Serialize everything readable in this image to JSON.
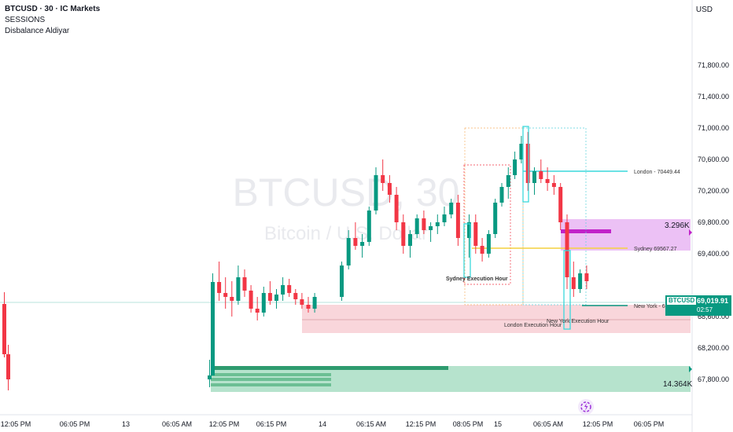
{
  "legend": {
    "title": "BTCUSD · 30 · IC Markets",
    "ind1": "SESSIONS",
    "ind2": "Disbalance Aldiyar"
  },
  "currency": "USD",
  "watermark": {
    "symbol": "BTCUSD, 30",
    "name": "Bitcoin / U.S. Dollar"
  },
  "yaxis": {
    "ticks": [
      "71,800.00",
      "71,400.00",
      "71,000.00",
      "70,600.00",
      "70,200.00",
      "69,800.00",
      "69,400.00",
      "68,600.00",
      "68,200.00",
      "67,800.00"
    ]
  },
  "xaxis": {
    "ticks": [
      "12:05 PM",
      "06:05 PM",
      "13",
      "06:05 AM",
      "12:05 PM",
      "06:15 PM",
      "14",
      "06:15 AM",
      "12:15 PM",
      "08:05 PM",
      "15",
      "06:05 AM",
      "12:05 PM",
      "06:05 PM"
    ]
  },
  "price": {
    "symbol": "BTCUSD",
    "value": "69,019.91",
    "countdown": "02:57"
  },
  "annotations": {
    "london": "London - 70449.44",
    "sydney": "Sydney 69567.27",
    "newyork": "New York - 6",
    "sydney_exec": "Sydney Execution Hour",
    "london_exec": "London Execution Hour",
    "ny_exec": "New York Execution Hour"
  },
  "volume_labels": {
    "top": "3.296K",
    "bottom": "14.364K"
  },
  "colors": {
    "up": "#089981",
    "down": "#f23645",
    "accent": "#e040fb"
  },
  "chart_data": {
    "type": "candlestick",
    "candles": [
      [
        68760,
        68910,
        68080,
        68120
      ],
      [
        68120,
        68240,
        67660,
        67800
      ],
      [
        67800,
        68050,
        67700,
        67850
      ],
      [
        67850,
        69150,
        67850,
        69040
      ],
      [
        69040,
        69300,
        68800,
        68900
      ],
      [
        68900,
        69100,
        68700,
        68850
      ],
      [
        68850,
        69050,
        68600,
        68800
      ],
      [
        68800,
        69250,
        68750,
        69100
      ],
      [
        69100,
        69200,
        68850,
        68930
      ],
      [
        68930,
        69000,
        68650,
        68700
      ],
      [
        68700,
        68850,
        68550,
        68650
      ],
      [
        68650,
        68980,
        68600,
        68900
      ],
      [
        68900,
        69050,
        68750,
        68800
      ],
      [
        68800,
        68950,
        68700,
        68880
      ],
      [
        68880,
        69100,
        68800,
        69000
      ],
      [
        69000,
        69080,
        68850,
        68900
      ],
      [
        68900,
        68950,
        68750,
        68820
      ],
      [
        68820,
        68900,
        68700,
        68750
      ],
      [
        68750,
        68850,
        68650,
        68700
      ],
      [
        68700,
        68900,
        68650,
        68850
      ],
      [
        68850,
        69300,
        68800,
        69250
      ],
      [
        69250,
        69700,
        69200,
        69600
      ],
      [
        69600,
        69800,
        69450,
        69500
      ],
      [
        69500,
        69650,
        69350,
        69550
      ],
      [
        69550,
        70000,
        69500,
        69950
      ],
      [
        69950,
        70500,
        69900,
        70400
      ],
      [
        70400,
        70600,
        70200,
        70300
      ],
      [
        70300,
        70400,
        70050,
        70150
      ],
      [
        70150,
        70250,
        69700,
        69800
      ],
      [
        69800,
        69900,
        69400,
        69500
      ],
      [
        69500,
        69700,
        69350,
        69650
      ],
      [
        69650,
        69900,
        69600,
        69850
      ],
      [
        69850,
        69950,
        69650,
        69700
      ],
      [
        69700,
        69800,
        69550,
        69750
      ],
      [
        69750,
        69900,
        69650,
        69800
      ],
      [
        69800,
        70000,
        69750,
        69900
      ],
      [
        69900,
        70100,
        69850,
        70050
      ],
      [
        70050,
        70150,
        69500,
        69600
      ],
      [
        69600,
        69900,
        69350,
        69800
      ],
      [
        69800,
        69900,
        69400,
        69500
      ],
      [
        69500,
        69600,
        69300,
        69400
      ],
      [
        69400,
        69700,
        69350,
        69650
      ],
      [
        69650,
        70100,
        69600,
        70050
      ],
      [
        70050,
        70300,
        70000,
        70250
      ],
      [
        70250,
        70500,
        70100,
        70400
      ],
      [
        70400,
        70700,
        70350,
        70600
      ],
      [
        70600,
        70900,
        70550,
        70800
      ],
      [
        70800,
        70950,
        70200,
        70300
      ],
      [
        70300,
        70500,
        70150,
        70450
      ],
      [
        70450,
        70600,
        70300,
        70350
      ],
      [
        70350,
        70500,
        70200,
        70300
      ],
      [
        70300,
        70400,
        70150,
        70250
      ],
      [
        70250,
        70300,
        69700,
        69800
      ],
      [
        69800,
        69900,
        68950,
        69100
      ],
      [
        69100,
        69300,
        68850,
        68950
      ],
      [
        68950,
        69200,
        68900,
        69150
      ],
      [
        69150,
        69250,
        68950,
        69050
      ]
    ]
  }
}
